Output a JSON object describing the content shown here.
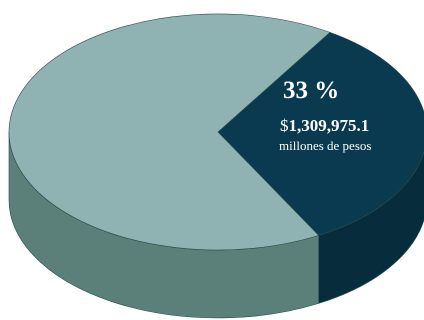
{
  "colors": {
    "large_top": "#8fb3b3",
    "large_side": "#5a8079",
    "small_top": "#0a3a4f",
    "small_side": "#072d3c",
    "label": "#ffffff"
  },
  "chart_data": {
    "type": "pie",
    "style": "3d",
    "title": "",
    "slices": [
      {
        "value": 33,
        "percent_label": "33 %",
        "amount_prefix": "$",
        "amount_value": "1,309,975.1",
        "unit_label": "millones de pesos",
        "color": "#0a3a4f",
        "labeled": true
      },
      {
        "value": 67,
        "color": "#8fb3b3",
        "labeled": false
      }
    ]
  }
}
